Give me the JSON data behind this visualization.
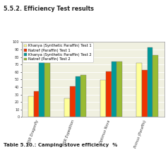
{
  "title": "5.5.2. Efficiency Test results",
  "caption": "Table 5.10.: Camping stove efficiency  %",
  "categories": [
    "MSR Dragonfly",
    "MSR Expedition",
    "Optimus Nova",
    "Primus (Paraffin)"
  ],
  "series": [
    {
      "label": "Khanya (Synthetic Paraffin) Test 1",
      "color": "#FFFF99",
      "values": [
        28,
        25,
        49,
        72
      ]
    },
    {
      "label": "Natref (Paraffin) Test 1",
      "color": "#EE3300",
      "values": [
        34,
        41,
        61,
        63
      ]
    },
    {
      "label": "Khanya (Synthetic Paraffin) Test 2",
      "color": "#009999",
      "values": [
        78,
        54,
        74,
        93
      ]
    },
    {
      "label": "Natref (Paraffin) Test 2",
      "color": "#99BB33",
      "values": [
        72,
        56,
        74,
        82
      ]
    }
  ],
  "ylim": [
    0,
    100
  ],
  "yticks": [
    0,
    10,
    20,
    30,
    40,
    50,
    60,
    70,
    80,
    90,
    100
  ],
  "background_color": "#ffffff",
  "plot_bg_color": "#f0f0e0",
  "legend_fontsize": 3.8,
  "axis_fontsize": 3.6,
  "title_fontsize": 5.8,
  "caption_fontsize": 5.0
}
